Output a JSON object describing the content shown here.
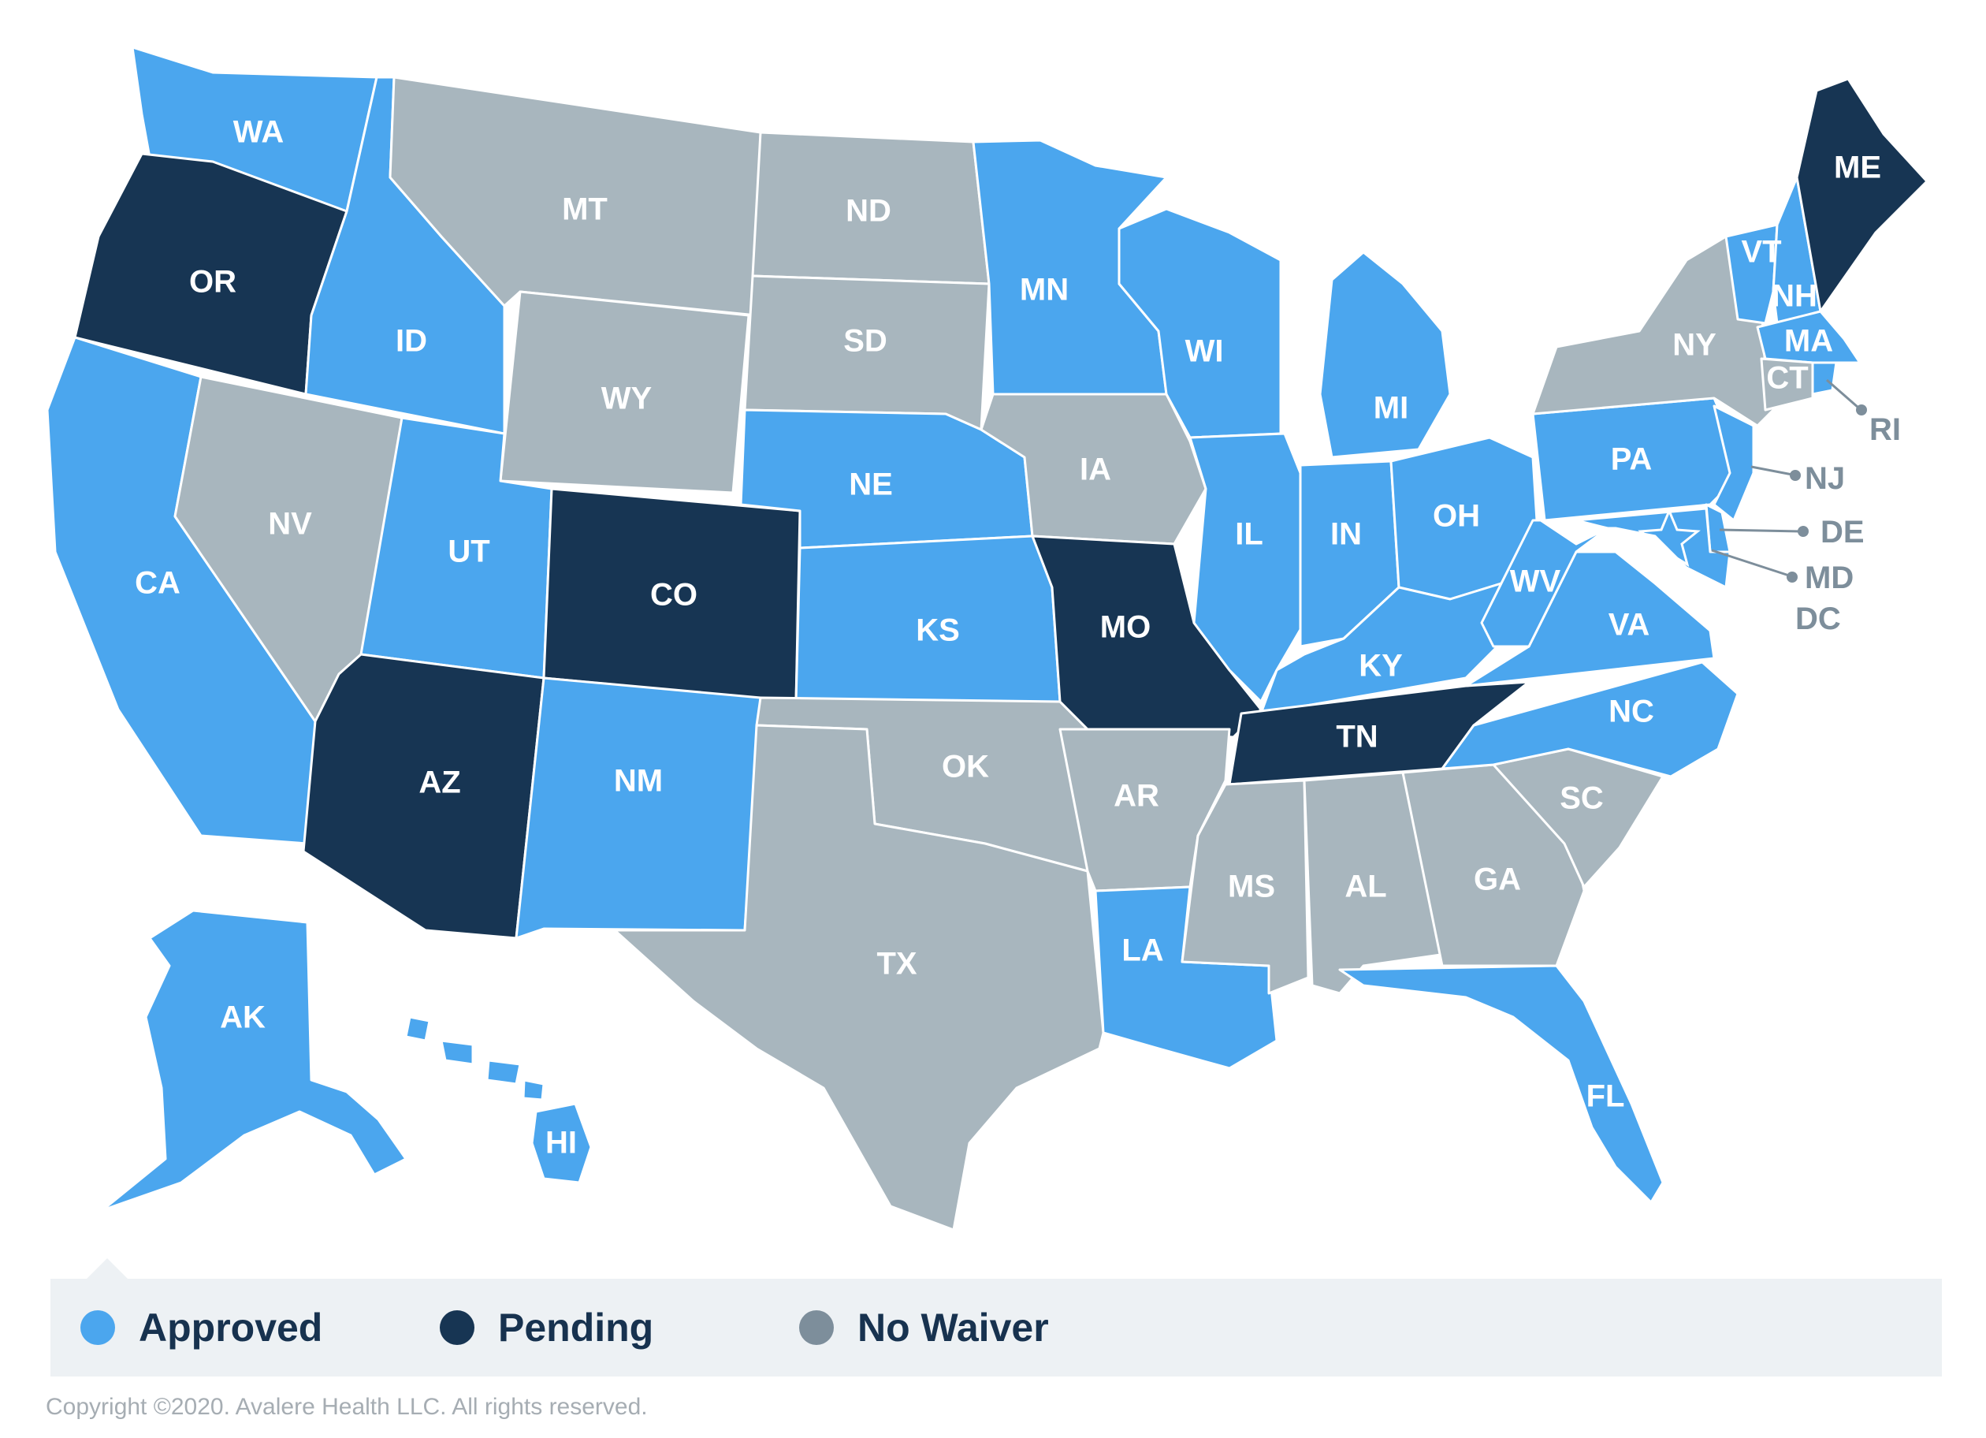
{
  "colors": {
    "approved": "#4ba6ee",
    "pending": "#173553",
    "no_waiver": "#a8b6be",
    "legend_no_waiver_dot": "#7d8e9b",
    "legend_bg": "#edf1f4",
    "label_text": "#ffffff",
    "external_label": "#7d8e9b"
  },
  "legend": {
    "approved": "Approved",
    "pending": "Pending",
    "no_waiver": "No Waiver"
  },
  "states": {
    "WA": {
      "label": "WA",
      "status": "approved"
    },
    "OR": {
      "label": "OR",
      "status": "pending"
    },
    "CA": {
      "label": "CA",
      "status": "approved"
    },
    "ID": {
      "label": "ID",
      "status": "approved"
    },
    "NV": {
      "label": "NV",
      "status": "no_waiver"
    },
    "MT": {
      "label": "MT",
      "status": "no_waiver"
    },
    "WY": {
      "label": "WY",
      "status": "no_waiver"
    },
    "UT": {
      "label": "UT",
      "status": "approved"
    },
    "AZ": {
      "label": "AZ",
      "status": "pending"
    },
    "CO": {
      "label": "CO",
      "status": "pending"
    },
    "NM": {
      "label": "NM",
      "status": "approved"
    },
    "ND": {
      "label": "ND",
      "status": "no_waiver"
    },
    "SD": {
      "label": "SD",
      "status": "no_waiver"
    },
    "NE": {
      "label": "NE",
      "status": "approved"
    },
    "KS": {
      "label": "KS",
      "status": "approved"
    },
    "OK": {
      "label": "OK",
      "status": "no_waiver"
    },
    "TX": {
      "label": "TX",
      "status": "no_waiver"
    },
    "MN": {
      "label": "MN",
      "status": "approved"
    },
    "IA": {
      "label": "IA",
      "status": "no_waiver"
    },
    "MO": {
      "label": "MO",
      "status": "pending"
    },
    "AR": {
      "label": "AR",
      "status": "no_waiver"
    },
    "LA": {
      "label": "LA",
      "status": "approved"
    },
    "WI": {
      "label": "WI",
      "status": "approved"
    },
    "IL": {
      "label": "IL",
      "status": "approved"
    },
    "MI": {
      "label": "MI",
      "status": "approved"
    },
    "IN": {
      "label": "IN",
      "status": "approved"
    },
    "OH": {
      "label": "OH",
      "status": "approved"
    },
    "KY": {
      "label": "KY",
      "status": "approved"
    },
    "TN": {
      "label": "TN",
      "status": "pending"
    },
    "MS": {
      "label": "MS",
      "status": "no_waiver"
    },
    "AL": {
      "label": "AL",
      "status": "no_waiver"
    },
    "GA": {
      "label": "GA",
      "status": "no_waiver"
    },
    "FL": {
      "label": "FL",
      "status": "approved"
    },
    "SC": {
      "label": "SC",
      "status": "no_waiver"
    },
    "NC": {
      "label": "NC",
      "status": "approved"
    },
    "VA": {
      "label": "VA",
      "status": "approved"
    },
    "WV": {
      "label": "WV",
      "status": "approved"
    },
    "PA": {
      "label": "PA",
      "status": "approved"
    },
    "NY": {
      "label": "NY",
      "status": "no_waiver"
    },
    "VT": {
      "label": "VT",
      "status": "approved"
    },
    "NH": {
      "label": "NH",
      "status": "approved"
    },
    "ME": {
      "label": "ME",
      "status": "pending"
    },
    "MA": {
      "label": "MA",
      "status": "approved"
    },
    "CT": {
      "label": "CT",
      "status": "no_waiver"
    },
    "RI": {
      "label": "RI",
      "status": "approved"
    },
    "NJ": {
      "label": "NJ",
      "status": "approved"
    },
    "DE": {
      "label": "DE",
      "status": "approved"
    },
    "MD": {
      "label": "MD",
      "status": "approved"
    },
    "DC": {
      "label": "DC",
      "status": "approved"
    },
    "AK": {
      "label": "AK",
      "status": "approved"
    },
    "HI": {
      "label": "HI",
      "status": "approved"
    }
  },
  "copyright": "Copyright ©2020. Avalere Health LLC. All rights reserved."
}
